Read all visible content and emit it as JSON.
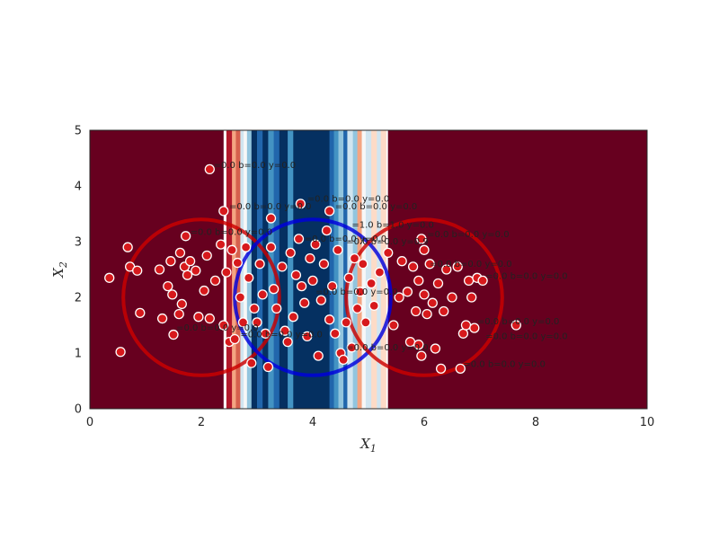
{
  "chart_data": {
    "type": "scatter",
    "title": "",
    "xlabel": "X",
    "xlabel_sub": "1",
    "ylabel": "X",
    "ylabel_sub": "2",
    "xlim": [
      0,
      10
    ],
    "ylim": [
      0,
      5
    ],
    "xticks": [
      "0",
      "2",
      "4",
      "6",
      "8",
      "10"
    ],
    "yticks": [
      "0",
      "1",
      "2",
      "3",
      "4",
      "5"
    ],
    "grid": false,
    "colors": {
      "dark_red": "#67001f",
      "red_mid": "#b2182b",
      "red_light": "#d6604d",
      "peach": "#f4a582",
      "pale": "#fddbc7",
      "ice": "#d1e5f0",
      "sky": "#92c5de",
      "blue_mid": "#4393c3",
      "blue": "#2166ac",
      "navy": "#053061",
      "circle_red": "#cc0000",
      "circle_blue": "#0000dd",
      "point_fill": "#d7191c",
      "point_edge": "#ffffff"
    },
    "background_bands": [
      {
        "x0": 0.0,
        "x1": 2.4,
        "color": "#67001f"
      },
      {
        "x0": 2.4,
        "x1": 2.45,
        "color": "#ffffff"
      },
      {
        "x0": 2.45,
        "x1": 2.55,
        "color": "#b2182b"
      },
      {
        "x0": 2.55,
        "x1": 2.62,
        "color": "#f4a582"
      },
      {
        "x0": 2.62,
        "x1": 2.7,
        "color": "#d6604d"
      },
      {
        "x0": 2.7,
        "x1": 2.76,
        "color": "#d1e5f0"
      },
      {
        "x0": 2.76,
        "x1": 2.82,
        "color": "#f7f7f7"
      },
      {
        "x0": 2.82,
        "x1": 2.9,
        "color": "#92c5de"
      },
      {
        "x0": 2.9,
        "x1": 3.0,
        "color": "#053061"
      },
      {
        "x0": 3.0,
        "x1": 3.1,
        "color": "#2166ac"
      },
      {
        "x0": 3.1,
        "x1": 3.2,
        "color": "#053061"
      },
      {
        "x0": 3.2,
        "x1": 3.3,
        "color": "#4393c3"
      },
      {
        "x0": 3.3,
        "x1": 3.4,
        "color": "#2166ac"
      },
      {
        "x0": 3.4,
        "x1": 3.55,
        "color": "#053061"
      },
      {
        "x0": 3.55,
        "x1": 3.65,
        "color": "#4393c3"
      },
      {
        "x0": 3.65,
        "x1": 4.3,
        "color": "#053061"
      },
      {
        "x0": 4.3,
        "x1": 4.38,
        "color": "#2166ac"
      },
      {
        "x0": 4.38,
        "x1": 4.46,
        "color": "#4393c3"
      },
      {
        "x0": 4.46,
        "x1": 4.55,
        "color": "#92c5de"
      },
      {
        "x0": 4.55,
        "x1": 4.62,
        "color": "#2166ac"
      },
      {
        "x0": 4.62,
        "x1": 4.72,
        "color": "#d1e5f0"
      },
      {
        "x0": 4.72,
        "x1": 4.8,
        "color": "#92c5de"
      },
      {
        "x0": 4.8,
        "x1": 4.88,
        "color": "#f4a582"
      },
      {
        "x0": 4.88,
        "x1": 4.95,
        "color": "#f7f7f7"
      },
      {
        "x0": 4.95,
        "x1": 5.05,
        "color": "#d1e5f0"
      },
      {
        "x0": 5.05,
        "x1": 5.15,
        "color": "#fddbc7"
      },
      {
        "x0": 5.15,
        "x1": 5.22,
        "color": "#d1e5f0"
      },
      {
        "x0": 5.22,
        "x1": 5.32,
        "color": "#fddbc7"
      },
      {
        "x0": 5.32,
        "x1": 5.35,
        "color": "#ffffff"
      },
      {
        "x0": 5.35,
        "x1": 10.0,
        "color": "#67001f"
      }
    ],
    "circles": [
      {
        "cx": 2,
        "cy": 2,
        "r": 1.4,
        "color": "red"
      },
      {
        "cx": 4,
        "cy": 2,
        "r": 1.4,
        "color": "blue"
      },
      {
        "cx": 6,
        "cy": 2,
        "r": 1.4,
        "color": "red"
      }
    ],
    "points": [
      [
        2.15,
        4.3
      ],
      [
        0.55,
        1.02
      ],
      [
        0.35,
        2.35
      ],
      [
        0.68,
        2.9
      ],
      [
        0.72,
        2.55
      ],
      [
        0.85,
        2.48
      ],
      [
        0.9,
        1.72
      ],
      [
        1.25,
        2.5
      ],
      [
        1.3,
        1.62
      ],
      [
        1.4,
        2.2
      ],
      [
        1.45,
        2.65
      ],
      [
        1.48,
        2.05
      ],
      [
        1.5,
        1.33
      ],
      [
        1.6,
        1.7
      ],
      [
        1.62,
        2.8
      ],
      [
        1.65,
        1.88
      ],
      [
        1.7,
        2.55
      ],
      [
        1.72,
        3.1
      ],
      [
        1.75,
        2.4
      ],
      [
        1.8,
        2.65
      ],
      [
        1.9,
        2.48
      ],
      [
        1.95,
        1.65
      ],
      [
        2.05,
        2.12
      ],
      [
        2.1,
        2.75
      ],
      [
        2.15,
        1.62
      ],
      [
        2.25,
        2.3
      ],
      [
        2.35,
        2.95
      ],
      [
        2.4,
        3.55
      ],
      [
        2.4,
        1.5
      ],
      [
        2.45,
        2.45
      ],
      [
        2.5,
        1.2
      ],
      [
        2.55,
        2.85
      ],
      [
        2.6,
        1.25
      ],
      [
        2.65,
        2.62
      ],
      [
        2.7,
        2.0
      ],
      [
        2.75,
        1.55
      ],
      [
        2.8,
        2.9
      ],
      [
        2.85,
        2.35
      ],
      [
        2.9,
        0.82
      ],
      [
        2.95,
        1.8
      ],
      [
        3.0,
        1.55
      ],
      [
        3.05,
        2.6
      ],
      [
        3.1,
        2.05
      ],
      [
        3.15,
        1.35
      ],
      [
        3.2,
        0.75
      ],
      [
        3.25,
        2.9
      ],
      [
        3.25,
        3.42
      ],
      [
        3.3,
        2.15
      ],
      [
        3.35,
        1.8
      ],
      [
        3.45,
        2.55
      ],
      [
        3.5,
        1.4
      ],
      [
        3.55,
        1.2
      ],
      [
        3.6,
        2.8
      ],
      [
        3.65,
        1.65
      ],
      [
        3.7,
        2.4
      ],
      [
        3.75,
        3.05
      ],
      [
        3.78,
        3.68
      ],
      [
        3.8,
        2.2
      ],
      [
        3.85,
        1.9
      ],
      [
        3.9,
        1.3
      ],
      [
        3.95,
        2.7
      ],
      [
        4.0,
        2.3
      ],
      [
        4.05,
        2.95
      ],
      [
        4.1,
        0.95
      ],
      [
        4.15,
        1.95
      ],
      [
        4.2,
        2.6
      ],
      [
        4.25,
        3.2
      ],
      [
        4.3,
        1.6
      ],
      [
        4.3,
        3.55
      ],
      [
        4.35,
        2.2
      ],
      [
        4.4,
        1.35
      ],
      [
        4.45,
        2.85
      ],
      [
        4.5,
        1.0
      ],
      [
        4.55,
        0.88
      ],
      [
        4.6,
        1.55
      ],
      [
        4.65,
        2.35
      ],
      [
        4.7,
        1.1
      ],
      [
        4.75,
        2.7
      ],
      [
        4.8,
        1.8
      ],
      [
        4.85,
        2.1
      ],
      [
        4.9,
        2.6
      ],
      [
        4.95,
        1.55
      ],
      [
        5.05,
        2.25
      ],
      [
        5.1,
        1.85
      ],
      [
        5.2,
        2.45
      ],
      [
        5.35,
        2.8
      ],
      [
        5.45,
        1.5
      ],
      [
        5.55,
        2.0
      ],
      [
        5.6,
        2.65
      ],
      [
        5.7,
        2.1
      ],
      [
        5.75,
        1.2
      ],
      [
        5.8,
        2.55
      ],
      [
        5.85,
        1.75
      ],
      [
        5.9,
        1.15
      ],
      [
        5.9,
        2.3
      ],
      [
        5.95,
        0.95
      ],
      [
        5.95,
        3.05
      ],
      [
        6.0,
        2.85
      ],
      [
        6.0,
        2.05
      ],
      [
        6.05,
        1.7
      ],
      [
        6.1,
        2.6
      ],
      [
        6.15,
        1.9
      ],
      [
        6.2,
        1.08
      ],
      [
        6.25,
        2.25
      ],
      [
        6.3,
        0.72
      ],
      [
        6.35,
        1.75
      ],
      [
        6.4,
        2.5
      ],
      [
        6.5,
        2.0
      ],
      [
        6.6,
        2.55
      ],
      [
        6.65,
        0.72
      ],
      [
        6.7,
        1.35
      ],
      [
        6.75,
        1.5
      ],
      [
        6.8,
        2.3
      ],
      [
        6.85,
        2.0
      ],
      [
        6.9,
        1.45
      ],
      [
        6.95,
        2.35
      ],
      [
        7.05,
        2.3
      ],
      [
        7.65,
        1.5
      ]
    ],
    "annotations": [
      {
        "text": "=0.0 b=0.0 y=0.0",
        "x": 2.22,
        "y": 4.32
      },
      {
        "text": "=0.0 b=0.0 y=0.0",
        "x": 2.5,
        "y": 3.58
      },
      {
        "text": "=0.0 b=0.0 y=0.0",
        "x": 3.9,
        "y": 3.72
      },
      {
        "text": "=0.0 b=0.0 y=0.0",
        "x": 4.4,
        "y": 3.58
      },
      {
        "text": "=1.0 b=1.0 y=0.0",
        "x": 4.7,
        "y": 3.25
      },
      {
        "text": "=0.0 b=0.0 y=0.0",
        "x": 1.8,
        "y": 3.12
      },
      {
        "text": "=0.0 b=0.0 y=0.0",
        "x": 3.85,
        "y": 3.0
      },
      {
        "text": "=0.0 b=0.0 y=0.9",
        "x": 4.6,
        "y": 2.95
      },
      {
        "text": "=0.0 b=0.0 y=0.0",
        "x": 6.05,
        "y": 3.08
      },
      {
        "text": "=0.0 b=0.0 y=0.0",
        "x": 6.1,
        "y": 2.55
      },
      {
        "text": "=0.0 b=0.0 y=0.0",
        "x": 7.1,
        "y": 2.33
      },
      {
        "text": "=0.0 b=0.0 y=0.0",
        "x": 4.05,
        "y": 2.05
      },
      {
        "text": "=0.0 b=0.0 y=0.0",
        "x": 6.95,
        "y": 1.52
      },
      {
        "text": "=0.0 b=0.0 y=0.0",
        "x": 7.1,
        "y": 1.25
      },
      {
        "text": "=0.0 b=0.0 y=0.0",
        "x": 6.7,
        "y": 0.75
      },
      {
        "text": "=0.0 b=0.0 y=0.0",
        "x": 4.6,
        "y": 1.05
      },
      {
        "text": "=0.0 b=0.0 y=0.0",
        "x": 2.7,
        "y": 1.28
      },
      {
        "text": "=0.0 b=0.0 y=0.0",
        "x": 1.55,
        "y": 1.4
      }
    ]
  }
}
